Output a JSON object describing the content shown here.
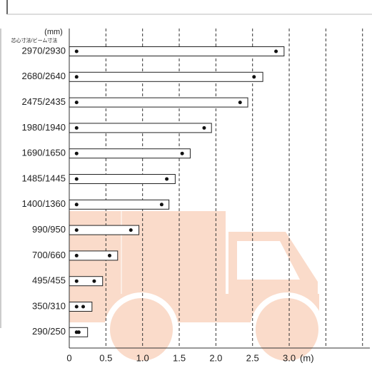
{
  "chart_data": {
    "type": "bar",
    "unit_label": "(mm)",
    "category_header": "芯心寸法/ビーム寸法",
    "x_unit": "(m)",
    "categories": [
      "2970/2930",
      "2680/2640",
      "2475/2435",
      "1980/1940",
      "1690/1650",
      "1485/1445",
      "1400/1360",
      "990/950",
      "700/660",
      "495/455",
      "350/310",
      "290/250"
    ],
    "values": [
      2.93,
      2.64,
      2.435,
      1.94,
      1.65,
      1.445,
      1.36,
      0.95,
      0.66,
      0.455,
      0.31,
      0.25
    ],
    "dots_left": [
      0.1,
      0.1,
      0.1,
      0.1,
      0.1,
      0.1,
      0.1,
      0.1,
      0.1,
      0.1,
      0.1,
      0.1
    ],
    "dots_right": [
      2.82,
      2.52,
      2.33,
      1.84,
      1.54,
      1.33,
      1.26,
      0.84,
      0.55,
      0.34,
      0.19,
      0.13
    ],
    "color": "#ffffff",
    "dot_color": "#111111",
    "xlim": [
      0,
      4.1
    ],
    "xticks": [
      0,
      0.5,
      {
        "value": 1,
        "label": "1.0"
      },
      1.5,
      {
        "value": 2,
        "label": "2.0"
      },
      2.5,
      {
        "value": 3,
        "label": "3.0"
      }
    ],
    "gridlines": [
      0.5,
      1,
      1.5,
      2,
      2.5,
      3,
      3.5,
      4
    ],
    "grid": true
  }
}
